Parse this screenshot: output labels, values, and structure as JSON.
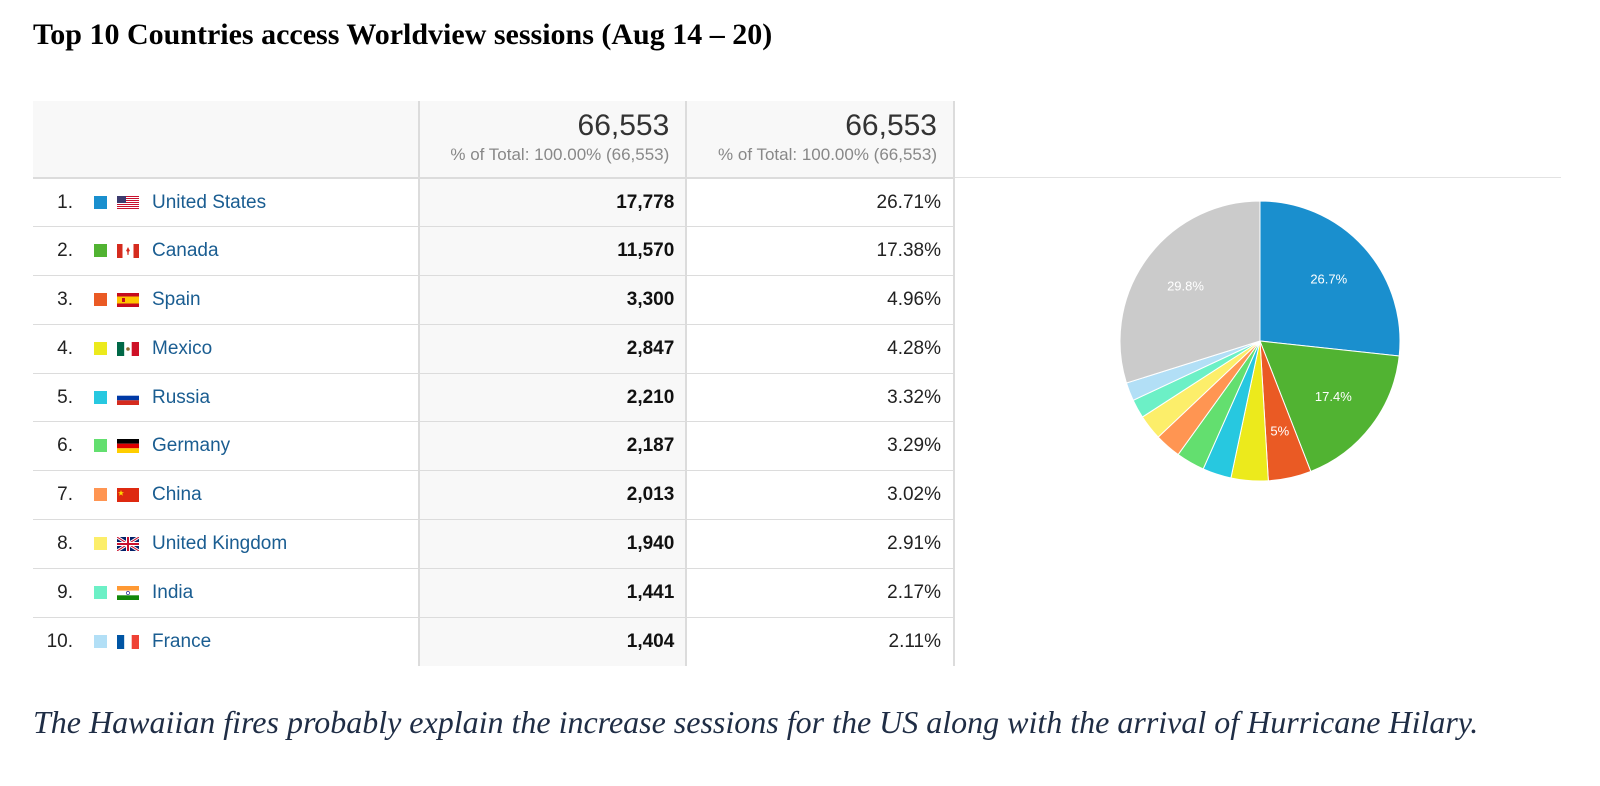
{
  "title": "Top 10 Countries access Worldview sessions (Aug 14 – 20)",
  "header": {
    "sessions_total": "66,553",
    "sessions_sub": "% of Total: 100.00% (66,553)",
    "pct_total": "66,553",
    "pct_sub": "% of Total: 100.00% (66,553)"
  },
  "rows": [
    {
      "rank": "1.",
      "country": "United States",
      "sessions": "17,778",
      "percent": "26.71%",
      "color": "#1a8fce",
      "flag": "us-flag"
    },
    {
      "rank": "2.",
      "country": "Canada",
      "sessions": "11,570",
      "percent": "17.38%",
      "color": "#51b332",
      "flag": "canada-flag"
    },
    {
      "rank": "3.",
      "country": "Spain",
      "sessions": "3,300",
      "percent": "4.96%",
      "color": "#ea5a24",
      "flag": "spain-flag"
    },
    {
      "rank": "4.",
      "country": "Mexico",
      "sessions": "2,847",
      "percent": "4.28%",
      "color": "#ecea1c",
      "flag": "mexico-flag"
    },
    {
      "rank": "5.",
      "country": "Russia",
      "sessions": "2,210",
      "percent": "3.32%",
      "color": "#27c8e0",
      "flag": "russia-flag"
    },
    {
      "rank": "6.",
      "country": "Germany",
      "sessions": "2,187",
      "percent": "3.29%",
      "color": "#63df6f",
      "flag": "germany-flag"
    },
    {
      "rank": "7.",
      "country": "China",
      "sessions": "2,013",
      "percent": "3.02%",
      "color": "#ff9552",
      "flag": "china-flag"
    },
    {
      "rank": "8.",
      "country": "United Kingdom",
      "sessions": "1,940",
      "percent": "2.91%",
      "color": "#fcee6a",
      "flag": "uk-flag"
    },
    {
      "rank": "9.",
      "country": "India",
      "sessions": "1,441",
      "percent": "2.17%",
      "color": "#6cf0c6",
      "flag": "india-flag"
    },
    {
      "rank": "10.",
      "country": "France",
      "sessions": "1,404",
      "percent": "2.11%",
      "color": "#b2dff6",
      "flag": "france-flag"
    }
  ],
  "chart_data": {
    "type": "pie",
    "slices": [
      {
        "label": "United States",
        "value": 26.71,
        "color": "#1a8fce",
        "data_label": "26.7%"
      },
      {
        "label": "Canada",
        "value": 17.38,
        "color": "#51b332",
        "data_label": "17.4%"
      },
      {
        "label": "Spain",
        "value": 4.96,
        "color": "#ea5a24",
        "data_label": "5%"
      },
      {
        "label": "Mexico",
        "value": 4.28,
        "color": "#ecea1c",
        "data_label": ""
      },
      {
        "label": "Russia",
        "value": 3.32,
        "color": "#27c8e0",
        "data_label": ""
      },
      {
        "label": "Germany",
        "value": 3.29,
        "color": "#63df6f",
        "data_label": ""
      },
      {
        "label": "China",
        "value": 3.02,
        "color": "#ff9552",
        "data_label": ""
      },
      {
        "label": "United Kingdom",
        "value": 2.91,
        "color": "#fcee6a",
        "data_label": ""
      },
      {
        "label": "India",
        "value": 2.17,
        "color": "#6cf0c6",
        "data_label": ""
      },
      {
        "label": "France",
        "value": 2.11,
        "color": "#b2dff6",
        "data_label": ""
      },
      {
        "label": "",
        "value": 29.85,
        "color": "#cbcbcb",
        "data_label": "29.8%"
      }
    ],
    "legend": "none"
  },
  "caption": "The Hawaiian fires probably explain the increase sessions for the US along with the arrival of Hurricane Hilary."
}
